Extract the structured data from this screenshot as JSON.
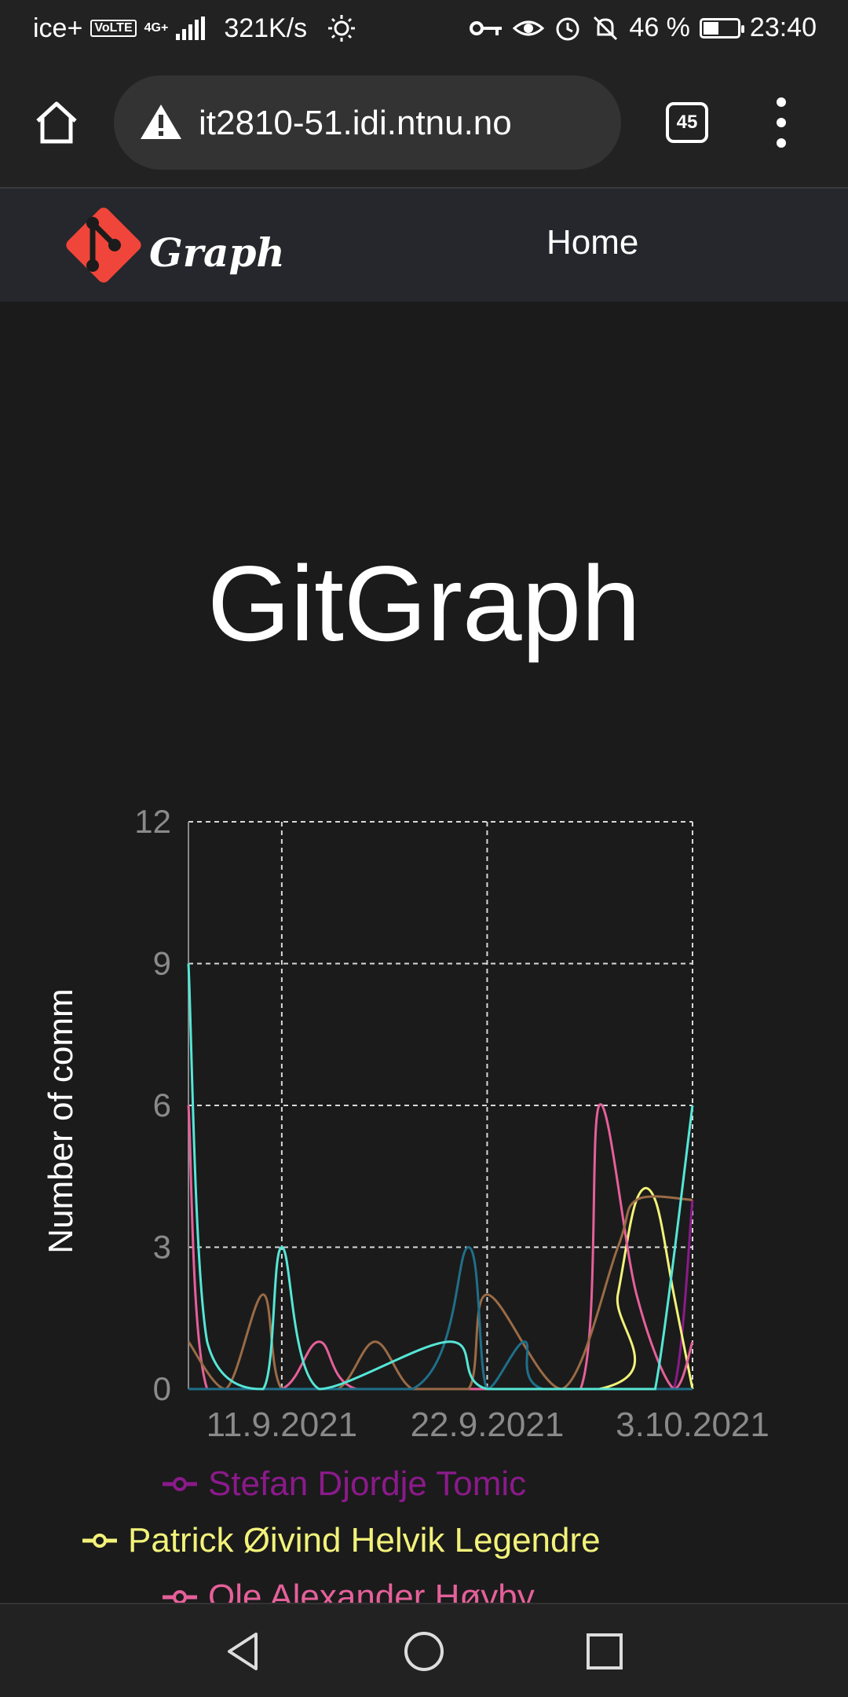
{
  "status_bar": {
    "carrier": "ice+",
    "volte": "VoLTE",
    "network": "4G+",
    "speed": "321K/s",
    "battery": "46 %",
    "battery_level": 0.46,
    "time": "23:40"
  },
  "browser": {
    "url": "it2810-51.idi.ntnu.no",
    "tab_count": "45"
  },
  "app": {
    "logo_text": "Graph",
    "nav_home": "Home",
    "title": "GitGraph"
  },
  "colors": {
    "accent": "#f0453a",
    "background": "#1b1b1b",
    "navbar": "#25272c"
  },
  "chart_data": {
    "type": "line",
    "ylabel": "Number of comm",
    "ylim": [
      0,
      12
    ],
    "yticks": [
      "0",
      "3",
      "6",
      "9",
      "12"
    ],
    "x_range": [
      "2021-09-06",
      "2021-10-03"
    ],
    "xticks": [
      {
        "date": "2021-09-11",
        "label": "11.9.2021"
      },
      {
        "date": "2021-09-22",
        "label": "22.9.2021"
      },
      {
        "date": "2021-10-03",
        "label": "3.10.2021"
      }
    ],
    "grid": true,
    "series": [
      {
        "name": "Stefan Djordje Tomic",
        "color": "#8b1a8b",
        "points": [
          [
            "2021-09-06",
            0
          ],
          [
            "2021-09-28",
            0
          ],
          [
            "2021-09-30",
            0
          ],
          [
            "2021-10-02",
            0
          ],
          [
            "2021-10-03",
            4
          ]
        ]
      },
      {
        "name": "Patrick Øivind Helvik Legendre",
        "color": "#f2f27a",
        "points": [
          [
            "2021-09-06",
            0
          ],
          [
            "2021-09-28",
            0
          ],
          [
            "2021-09-29",
            2
          ],
          [
            "2021-09-30",
            4
          ],
          [
            "2021-10-01",
            4
          ],
          [
            "2021-10-02",
            2
          ],
          [
            "2021-10-03",
            0
          ]
        ]
      },
      {
        "name": "Ole Alexander Høyby",
        "color": "#e5609a",
        "points": [
          [
            "2021-09-06",
            6
          ],
          [
            "2021-09-07",
            0
          ],
          [
            "2021-09-11",
            0
          ],
          [
            "2021-09-13",
            1
          ],
          [
            "2021-09-15",
            0
          ],
          [
            "2021-09-22",
            0
          ],
          [
            "2021-09-27",
            0
          ],
          [
            "2021-09-28",
            6
          ],
          [
            "2021-09-30",
            2
          ],
          [
            "2021-10-02",
            0
          ],
          [
            "2021-10-03",
            1
          ]
        ]
      },
      {
        "name": "",
        "color": "#9a6b46",
        "points": [
          [
            "2021-09-06",
            1
          ],
          [
            "2021-09-08",
            0
          ],
          [
            "2021-09-10",
            2
          ],
          [
            "2021-09-11",
            0
          ],
          [
            "2021-09-14",
            0
          ],
          [
            "2021-09-16",
            1
          ],
          [
            "2021-09-18",
            0
          ],
          [
            "2021-09-21",
            0
          ],
          [
            "2021-09-22",
            2
          ],
          [
            "2021-09-26",
            0
          ],
          [
            "2021-09-29",
            3
          ],
          [
            "2021-09-30",
            4
          ],
          [
            "2021-10-03",
            4
          ]
        ]
      },
      {
        "name": "",
        "color": "#1f6f8a",
        "points": [
          [
            "2021-09-06",
            0
          ],
          [
            "2021-09-18",
            0
          ],
          [
            "2021-09-21",
            3
          ],
          [
            "2021-09-22",
            0
          ],
          [
            "2021-09-24",
            1
          ],
          [
            "2021-09-25",
            0
          ],
          [
            "2021-10-03",
            0
          ]
        ]
      },
      {
        "name": "",
        "color": "#55e6d6",
        "points": [
          [
            "2021-09-06",
            9
          ],
          [
            "2021-09-07",
            1
          ],
          [
            "2021-09-10",
            0
          ],
          [
            "2021-09-11",
            3
          ],
          [
            "2021-09-13",
            0
          ],
          [
            "2021-09-20",
            1
          ],
          [
            "2021-09-22",
            0
          ],
          [
            "2021-09-30",
            0
          ],
          [
            "2021-10-01",
            0
          ],
          [
            "2021-10-03",
            6
          ]
        ]
      }
    ]
  },
  "legend": [
    {
      "label": "Stefan Djordje Tomic",
      "color": "#8b1a8b"
    },
    {
      "label": "Patrick Øivind Helvik Legendre",
      "color": "#f2f27a"
    },
    {
      "label": "Ole Alexander Høyby",
      "color": "#e5609a"
    }
  ]
}
